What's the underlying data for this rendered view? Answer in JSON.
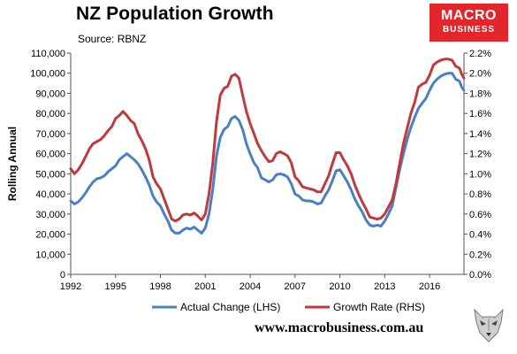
{
  "header": {
    "title": "NZ Population Growth",
    "source": "Source: RBNZ"
  },
  "logo": {
    "line1": "MACRO",
    "line2": "BUSINESS",
    "color": "#e3262b"
  },
  "footer": {
    "website": "www.macrobusiness.com.au",
    "icon": "wolf-icon"
  },
  "chart_data": {
    "type": "line",
    "title": "NZ Population Growth",
    "ylabel": "Rolling Annual",
    "y2label": "",
    "xlim": [
      1992,
      2018.3
    ],
    "ylim": [
      0,
      110000
    ],
    "y2lim": [
      0,
      0.022
    ],
    "x_ticks": [
      1992,
      1995,
      1998,
      2001,
      2004,
      2007,
      2010,
      2013,
      2016
    ],
    "y_ticks": [
      "0",
      "10,000",
      "20,000",
      "30,000",
      "40,000",
      "50,000",
      "60,000",
      "70,000",
      "80,000",
      "90,000",
      "100,000",
      "110,000"
    ],
    "y2_ticks": [
      "0.0%",
      "0.2%",
      "0.4%",
      "0.6%",
      "0.8%",
      "1.0%",
      "1.2%",
      "1.4%",
      "1.6%",
      "1.8%",
      "2.0%",
      "2.2%"
    ],
    "grid": false,
    "legend_position": "bottom",
    "series": [
      {
        "name": "Actual Change (LHS)",
        "axis": "left",
        "color": "#4a7fc1",
        "points": [
          [
            1992.0,
            36500
          ],
          [
            1992.25,
            35000
          ],
          [
            1992.5,
            36000
          ],
          [
            1992.75,
            38000
          ],
          [
            1993.0,
            40500
          ],
          [
            1993.25,
            43500
          ],
          [
            1993.5,
            46000
          ],
          [
            1993.75,
            47500
          ],
          [
            1994.0,
            48000
          ],
          [
            1994.25,
            49000
          ],
          [
            1994.5,
            51000
          ],
          [
            1994.75,
            52500
          ],
          [
            1995.0,
            54000
          ],
          [
            1995.25,
            57000
          ],
          [
            1995.5,
            58500
          ],
          [
            1995.75,
            60000
          ],
          [
            1996.0,
            58500
          ],
          [
            1996.25,
            57000
          ],
          [
            1996.5,
            55000
          ],
          [
            1996.75,
            52000
          ],
          [
            1997.0,
            48500
          ],
          [
            1997.25,
            44500
          ],
          [
            1997.5,
            39000
          ],
          [
            1997.75,
            36000
          ],
          [
            1998.0,
            34000
          ],
          [
            1998.25,
            30000
          ],
          [
            1998.5,
            26500
          ],
          [
            1998.75,
            22000
          ],
          [
            1999.0,
            20500
          ],
          [
            1999.25,
            20500
          ],
          [
            1999.5,
            22000
          ],
          [
            1999.75,
            23000
          ],
          [
            2000.0,
            22500
          ],
          [
            2000.25,
            23500
          ],
          [
            2000.5,
            22000
          ],
          [
            2000.75,
            20500
          ],
          [
            2001.0,
            23000
          ],
          [
            2001.25,
            30000
          ],
          [
            2001.5,
            42000
          ],
          [
            2001.75,
            59000
          ],
          [
            2002.0,
            68000
          ],
          [
            2002.25,
            72000
          ],
          [
            2002.5,
            73500
          ],
          [
            2002.75,
            77500
          ],
          [
            2003.0,
            78500
          ],
          [
            2003.25,
            76500
          ],
          [
            2003.5,
            72000
          ],
          [
            2003.75,
            65000
          ],
          [
            2004.0,
            60000
          ],
          [
            2004.25,
            55500
          ],
          [
            2004.5,
            53000
          ],
          [
            2004.75,
            48000
          ],
          [
            2005.0,
            47000
          ],
          [
            2005.25,
            46000
          ],
          [
            2005.5,
            47000
          ],
          [
            2005.75,
            49500
          ],
          [
            2006.0,
            50000
          ],
          [
            2006.25,
            49500
          ],
          [
            2006.5,
            48500
          ],
          [
            2006.75,
            45000
          ],
          [
            2007.0,
            40000
          ],
          [
            2007.25,
            39000
          ],
          [
            2007.5,
            37000
          ],
          [
            2007.75,
            36500
          ],
          [
            2008.0,
            36500
          ],
          [
            2008.25,
            36000
          ],
          [
            2008.5,
            35000
          ],
          [
            2008.75,
            35500
          ],
          [
            2009.0,
            39000
          ],
          [
            2009.25,
            42000
          ],
          [
            2009.5,
            46500
          ],
          [
            2009.75,
            51500
          ],
          [
            2010.0,
            52000
          ],
          [
            2010.25,
            49000
          ],
          [
            2010.5,
            46000
          ],
          [
            2010.75,
            42000
          ],
          [
            2011.0,
            37500
          ],
          [
            2011.25,
            34000
          ],
          [
            2011.5,
            31000
          ],
          [
            2011.75,
            27000
          ],
          [
            2012.0,
            24500
          ],
          [
            2012.25,
            24000
          ],
          [
            2012.5,
            24500
          ],
          [
            2012.75,
            24000
          ],
          [
            2013.0,
            26500
          ],
          [
            2013.25,
            30000
          ],
          [
            2013.5,
            34000
          ],
          [
            2013.75,
            43000
          ],
          [
            2014.0,
            52000
          ],
          [
            2014.25,
            60000
          ],
          [
            2014.5,
            67000
          ],
          [
            2014.75,
            73000
          ],
          [
            2015.0,
            78000
          ],
          [
            2015.25,
            82500
          ],
          [
            2015.5,
            85000
          ],
          [
            2015.75,
            87500
          ],
          [
            2016.0,
            91500
          ],
          [
            2016.25,
            95000
          ],
          [
            2016.5,
            97000
          ],
          [
            2016.75,
            98500
          ],
          [
            2017.0,
            99500
          ],
          [
            2017.25,
            100000
          ],
          [
            2017.5,
            100000
          ],
          [
            2017.75,
            97000
          ],
          [
            2018.0,
            96000
          ],
          [
            2018.15,
            93000
          ],
          [
            2018.3,
            91500
          ]
        ]
      },
      {
        "name": "Growth Rate (RHS)",
        "axis": "right",
        "color": "#c0393d",
        "points": [
          [
            1992.0,
            0.0105
          ],
          [
            1992.25,
            0.01
          ],
          [
            1992.5,
            0.0104
          ],
          [
            1992.75,
            0.011
          ],
          [
            1993.0,
            0.0117
          ],
          [
            1993.25,
            0.0125
          ],
          [
            1993.5,
            0.013
          ],
          [
            1993.75,
            0.0132
          ],
          [
            1994.0,
            0.0134
          ],
          [
            1994.25,
            0.0138
          ],
          [
            1994.5,
            0.0143
          ],
          [
            1994.75,
            0.0147
          ],
          [
            1995.0,
            0.0155
          ],
          [
            1995.25,
            0.0158
          ],
          [
            1995.5,
            0.0162
          ],
          [
            1995.75,
            0.0158
          ],
          [
            1996.0,
            0.0153
          ],
          [
            1996.25,
            0.015
          ],
          [
            1996.5,
            0.014
          ],
          [
            1996.75,
            0.0133
          ],
          [
            1997.0,
            0.0125
          ],
          [
            1997.25,
            0.0114
          ],
          [
            1997.5,
            0.0097
          ],
          [
            1997.75,
            0.009
          ],
          [
            1998.0,
            0.0085
          ],
          [
            1998.25,
            0.0075
          ],
          [
            1998.5,
            0.0065
          ],
          [
            1998.75,
            0.0055
          ],
          [
            1999.0,
            0.0053
          ],
          [
            1999.25,
            0.0055
          ],
          [
            1999.5,
            0.0059
          ],
          [
            1999.75,
            0.006
          ],
          [
            2000.0,
            0.0059
          ],
          [
            2000.25,
            0.0061
          ],
          [
            2000.5,
            0.0058
          ],
          [
            2000.75,
            0.0054
          ],
          [
            2001.0,
            0.006
          ],
          [
            2001.25,
            0.008
          ],
          [
            2001.5,
            0.011
          ],
          [
            2001.75,
            0.0152
          ],
          [
            2002.0,
            0.0178
          ],
          [
            2002.25,
            0.0185
          ],
          [
            2002.5,
            0.0187
          ],
          [
            2002.75,
            0.0197
          ],
          [
            2003.0,
            0.0199
          ],
          [
            2003.25,
            0.0195
          ],
          [
            2003.5,
            0.0178
          ],
          [
            2003.75,
            0.0162
          ],
          [
            2004.0,
            0.015
          ],
          [
            2004.25,
            0.014
          ],
          [
            2004.5,
            0.013
          ],
          [
            2004.75,
            0.0123
          ],
          [
            2005.0,
            0.0117
          ],
          [
            2005.25,
            0.0112
          ],
          [
            2005.5,
            0.0113
          ],
          [
            2005.75,
            0.012
          ],
          [
            2006.0,
            0.0122
          ],
          [
            2006.25,
            0.012
          ],
          [
            2006.5,
            0.0118
          ],
          [
            2006.75,
            0.0111
          ],
          [
            2007.0,
            0.0097
          ],
          [
            2007.25,
            0.0093
          ],
          [
            2007.5,
            0.0087
          ],
          [
            2007.75,
            0.0086
          ],
          [
            2008.0,
            0.0085
          ],
          [
            2008.25,
            0.0084
          ],
          [
            2008.5,
            0.0082
          ],
          [
            2008.75,
            0.0082
          ],
          [
            2009.0,
            0.009
          ],
          [
            2009.25,
            0.0098
          ],
          [
            2009.5,
            0.011
          ],
          [
            2009.75,
            0.0121
          ],
          [
            2010.0,
            0.0121
          ],
          [
            2010.25,
            0.0114
          ],
          [
            2010.5,
            0.0108
          ],
          [
            2010.75,
            0.01
          ],
          [
            2011.0,
            0.0089
          ],
          [
            2011.25,
            0.008
          ],
          [
            2011.5,
            0.0072
          ],
          [
            2011.75,
            0.0065
          ],
          [
            2012.0,
            0.0057
          ],
          [
            2012.25,
            0.0056
          ],
          [
            2012.5,
            0.0055
          ],
          [
            2012.75,
            0.0056
          ],
          [
            2013.0,
            0.006
          ],
          [
            2013.25,
            0.0067
          ],
          [
            2013.5,
            0.0074
          ],
          [
            2013.75,
            0.009
          ],
          [
            2014.0,
            0.011
          ],
          [
            2014.25,
            0.013
          ],
          [
            2014.5,
            0.0145
          ],
          [
            2014.75,
            0.016
          ],
          [
            2015.0,
            0.0171
          ],
          [
            2015.25,
            0.0186
          ],
          [
            2015.5,
            0.0189
          ],
          [
            2015.75,
            0.0191
          ],
          [
            2016.0,
            0.0198
          ],
          [
            2016.25,
            0.0208
          ],
          [
            2016.5,
            0.0211
          ],
          [
            2016.75,
            0.0213
          ],
          [
            2017.0,
            0.0214
          ],
          [
            2017.25,
            0.0214
          ],
          [
            2017.5,
            0.0213
          ],
          [
            2017.75,
            0.0207
          ],
          [
            2018.0,
            0.0205
          ],
          [
            2018.15,
            0.0199
          ],
          [
            2018.3,
            0.0195
          ]
        ]
      }
    ]
  }
}
